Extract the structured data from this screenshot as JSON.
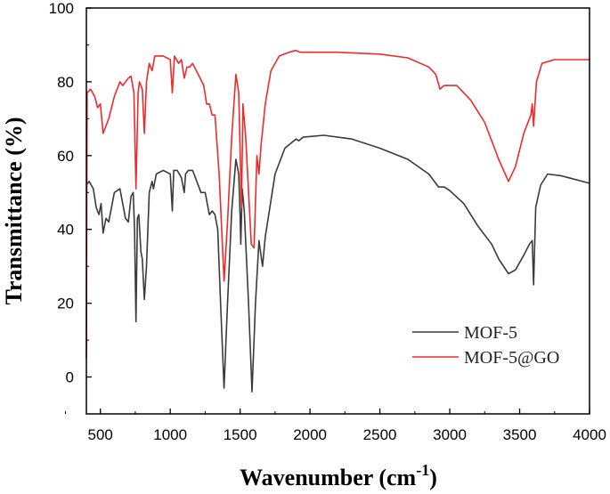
{
  "chart_data": {
    "type": "line",
    "xlabel": "Wavenumber (cm",
    "xlabel_sup": "-1",
    "xlabel_end": ")",
    "ylabel": "Transmittance (%)",
    "xlim": [
      400,
      4000
    ],
    "ylim": [
      -10,
      100
    ],
    "xticks": [
      500,
      1000,
      1500,
      2000,
      2500,
      3000,
      3500,
      4000
    ],
    "yticks": [
      0,
      20,
      40,
      60,
      80,
      100
    ],
    "legend_position": "bottom-right",
    "series": [
      {
        "name": "MOF-5",
        "color": "#3a3a3a",
        "points": [
          [
            400,
            52
          ],
          [
            420,
            53
          ],
          [
            450,
            51
          ],
          [
            470,
            46
          ],
          [
            490,
            44
          ],
          [
            505,
            47
          ],
          [
            520,
            39
          ],
          [
            540,
            43
          ],
          [
            560,
            42
          ],
          [
            600,
            50
          ],
          [
            640,
            51
          ],
          [
            680,
            43
          ],
          [
            700,
            42
          ],
          [
            720,
            49
          ],
          [
            735,
            50
          ],
          [
            745,
            40
          ],
          [
            755,
            15
          ],
          [
            765,
            43
          ],
          [
            775,
            44
          ],
          [
            790,
            34
          ],
          [
            800,
            32
          ],
          [
            815,
            21
          ],
          [
            830,
            30
          ],
          [
            850,
            50
          ],
          [
            870,
            53
          ],
          [
            880,
            51
          ],
          [
            900,
            55
          ],
          [
            950,
            56
          ],
          [
            1000,
            55
          ],
          [
            1015,
            45
          ],
          [
            1025,
            56
          ],
          [
            1050,
            56
          ],
          [
            1080,
            54
          ],
          [
            1100,
            50
          ],
          [
            1110,
            55
          ],
          [
            1130,
            56
          ],
          [
            1160,
            56
          ],
          [
            1190,
            53
          ],
          [
            1220,
            50
          ],
          [
            1250,
            50
          ],
          [
            1280,
            44
          ],
          [
            1300,
            45
          ],
          [
            1320,
            44
          ],
          [
            1340,
            40
          ],
          [
            1360,
            20
          ],
          [
            1385,
            -3
          ],
          [
            1410,
            20
          ],
          [
            1440,
            45
          ],
          [
            1470,
            59
          ],
          [
            1490,
            55
          ],
          [
            1500,
            44
          ],
          [
            1505,
            36
          ],
          [
            1515,
            51
          ],
          [
            1530,
            45
          ],
          [
            1560,
            20
          ],
          [
            1585,
            -4
          ],
          [
            1610,
            20
          ],
          [
            1635,
            37
          ],
          [
            1660,
            30
          ],
          [
            1680,
            38
          ],
          [
            1750,
            55
          ],
          [
            1820,
            62
          ],
          [
            1900,
            64.5
          ],
          [
            1920,
            64
          ],
          [
            1950,
            65
          ],
          [
            2100,
            65.5
          ],
          [
            2300,
            64.5
          ],
          [
            2500,
            62
          ],
          [
            2700,
            59
          ],
          [
            2850,
            55
          ],
          [
            2920,
            51.5
          ],
          [
            2960,
            51.5
          ],
          [
            3000,
            50.5
          ],
          [
            3100,
            47
          ],
          [
            3200,
            41
          ],
          [
            3300,
            36
          ],
          [
            3350,
            32
          ],
          [
            3420,
            28
          ],
          [
            3470,
            29
          ],
          [
            3530,
            33
          ],
          [
            3570,
            36
          ],
          [
            3590,
            37
          ],
          [
            3600,
            25
          ],
          [
            3615,
            46
          ],
          [
            3650,
            52
          ],
          [
            3700,
            55
          ],
          [
            3800,
            54.5
          ],
          [
            4000,
            52.5
          ]
        ]
      },
      {
        "name": "MOF-5@GO",
        "color": "#ee2a2a",
        "points": [
          [
            400,
            5
          ],
          [
            405,
            77
          ],
          [
            430,
            78
          ],
          [
            460,
            76
          ],
          [
            480,
            73
          ],
          [
            500,
            74
          ],
          [
            520,
            66
          ],
          [
            560,
            70
          ],
          [
            600,
            76
          ],
          [
            640,
            80
          ],
          [
            660,
            79
          ],
          [
            700,
            81
          ],
          [
            720,
            81.5
          ],
          [
            740,
            77
          ],
          [
            755,
            51
          ],
          [
            770,
            77
          ],
          [
            780,
            80
          ],
          [
            800,
            78
          ],
          [
            815,
            66
          ],
          [
            830,
            80
          ],
          [
            850,
            85
          ],
          [
            870,
            83
          ],
          [
            890,
            87
          ],
          [
            950,
            87
          ],
          [
            1000,
            86
          ],
          [
            1015,
            77
          ],
          [
            1030,
            87
          ],
          [
            1060,
            85
          ],
          [
            1080,
            86
          ],
          [
            1100,
            81
          ],
          [
            1120,
            84
          ],
          [
            1140,
            84
          ],
          [
            1160,
            85
          ],
          [
            1200,
            82
          ],
          [
            1240,
            79
          ],
          [
            1260,
            74
          ],
          [
            1280,
            74
          ],
          [
            1300,
            71
          ],
          [
            1320,
            71
          ],
          [
            1350,
            55
          ],
          [
            1385,
            26
          ],
          [
            1410,
            42
          ],
          [
            1440,
            65
          ],
          [
            1470,
            82
          ],
          [
            1490,
            77
          ],
          [
            1500,
            62
          ],
          [
            1510,
            46
          ],
          [
            1520,
            74
          ],
          [
            1540,
            65
          ],
          [
            1580,
            36
          ],
          [
            1600,
            35
          ],
          [
            1620,
            60
          ],
          [
            1635,
            55
          ],
          [
            1650,
            63
          ],
          [
            1680,
            74
          ],
          [
            1720,
            83
          ],
          [
            1780,
            87
          ],
          [
            1850,
            88
          ],
          [
            1900,
            88.5
          ],
          [
            1930,
            88
          ],
          [
            2000,
            88
          ],
          [
            2200,
            88
          ],
          [
            2500,
            87.5
          ],
          [
            2700,
            86.5
          ],
          [
            2850,
            84
          ],
          [
            2900,
            82
          ],
          [
            2930,
            78
          ],
          [
            2960,
            79
          ],
          [
            3050,
            79
          ],
          [
            3150,
            75
          ],
          [
            3250,
            69
          ],
          [
            3350,
            59
          ],
          [
            3420,
            53
          ],
          [
            3470,
            57
          ],
          [
            3530,
            66
          ],
          [
            3580,
            71
          ],
          [
            3590,
            74
          ],
          [
            3600,
            68
          ],
          [
            3620,
            80
          ],
          [
            3660,
            85
          ],
          [
            3750,
            86
          ],
          [
            4000,
            86
          ]
        ]
      }
    ]
  }
}
